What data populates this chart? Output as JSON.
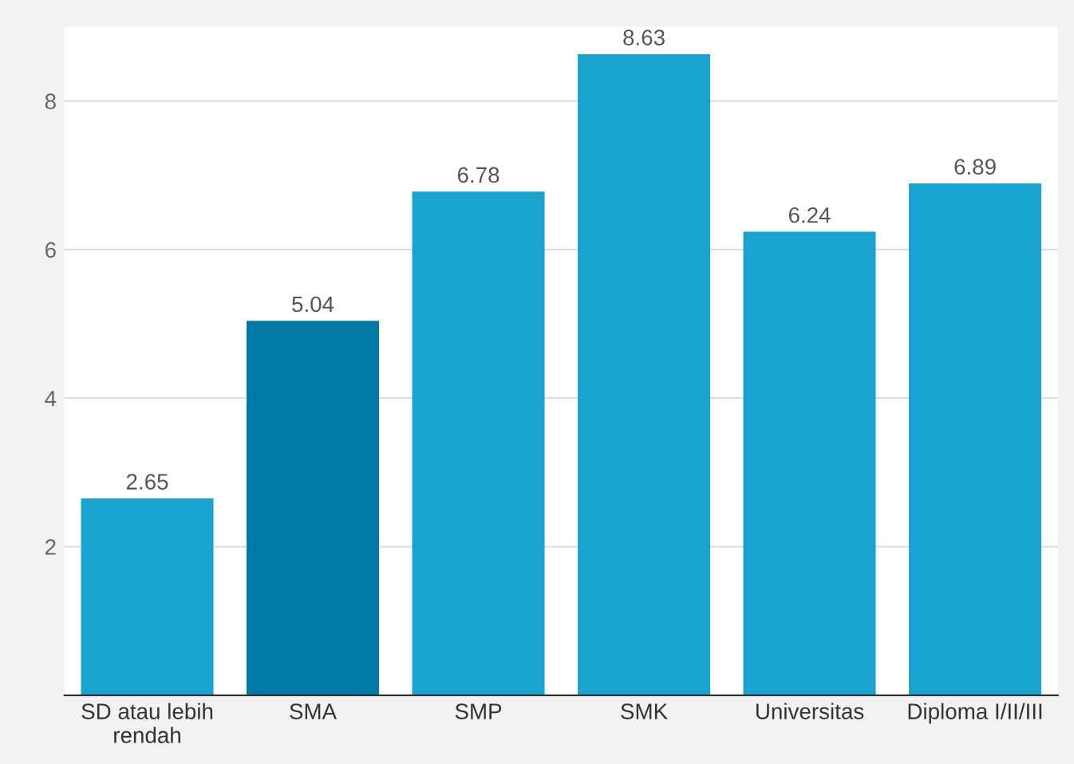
{
  "chart_data": {
    "type": "bar",
    "categories": [
      "SD atau lebih\nrendah",
      "SMA",
      "SMP",
      "SMK",
      "Universitas",
      "Diploma I/II/III"
    ],
    "values": [
      2.65,
      5.04,
      6.78,
      8.63,
      6.24,
      6.89
    ],
    "colors": [
      "#19a3d1",
      "#0079a5",
      "#19a3d1",
      "#19a3d1",
      "#19a3d1",
      "#19a3d1"
    ],
    "ylim": [
      0,
      9
    ],
    "yticks": [
      2,
      4,
      6,
      8
    ],
    "grid": "y",
    "data_labels": true
  }
}
